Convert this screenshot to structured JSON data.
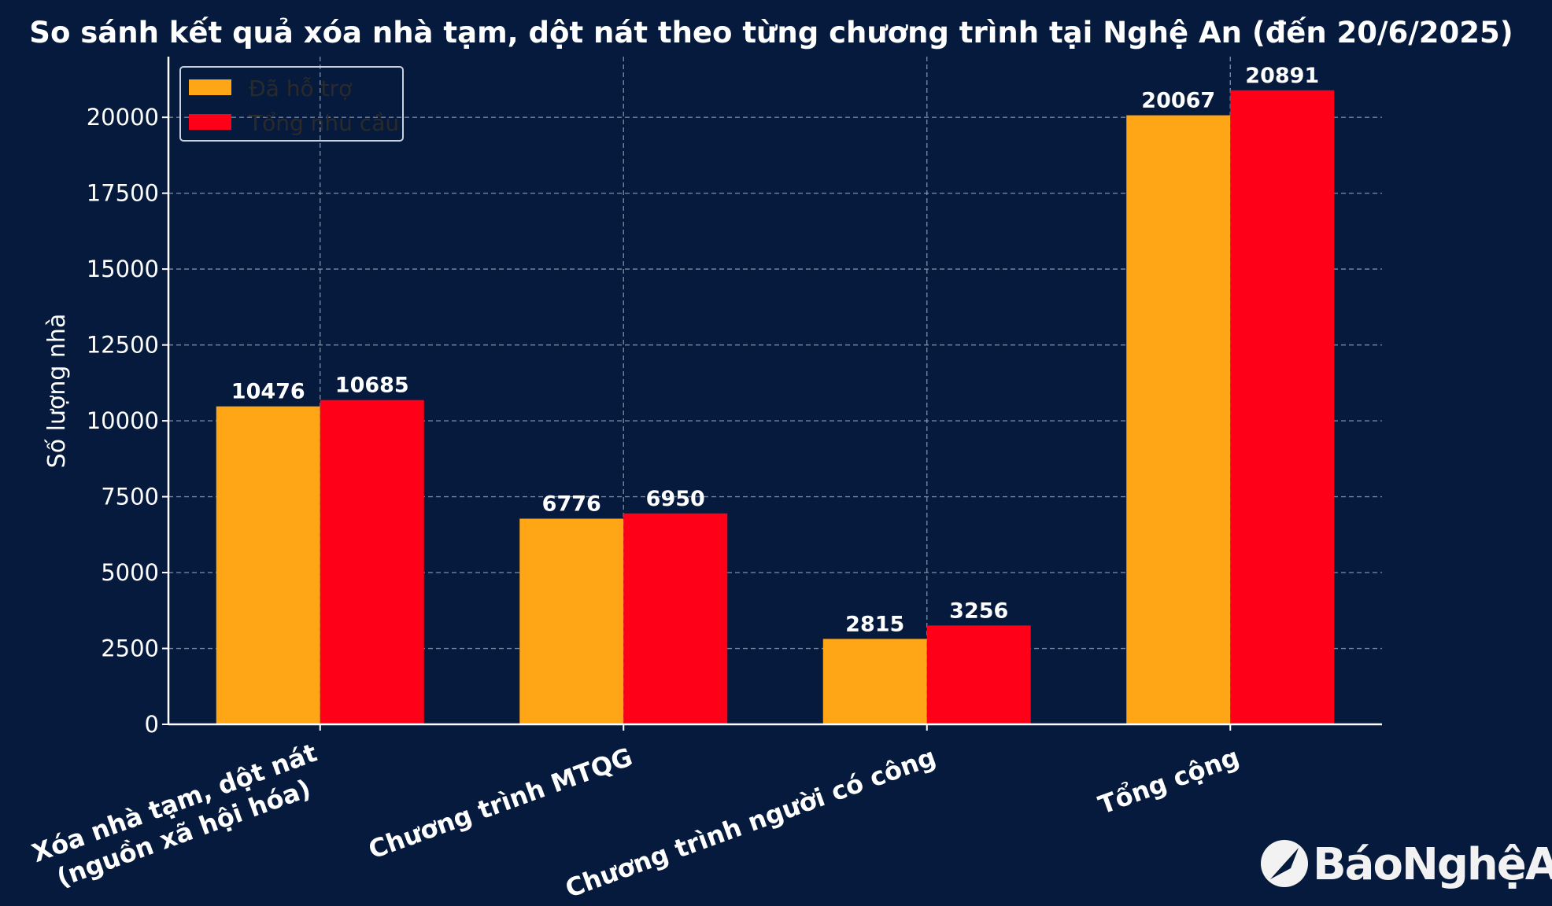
{
  "chart_data": {
    "type": "bar",
    "title": "So sánh kết quả xóa nhà tạm, dột nát theo từng chương trình tại Nghệ An (đến 20/6/2025)",
    "xlabel": "",
    "ylabel": "Số lượng nhà",
    "ylim": [
      0,
      22000
    ],
    "yticks": [
      0,
      2500,
      5000,
      7500,
      10000,
      12500,
      15000,
      17500,
      20000
    ],
    "grid": true,
    "legend_position": "top-left",
    "categories": [
      [
        "Xóa nhà tạm, dột nát",
        "(nguồn xã hội hóa)"
      ],
      [
        "Chương trình MTQG"
      ],
      [
        "Chương trình người có công"
      ],
      [
        "Tổng cộng"
      ]
    ],
    "series": [
      {
        "name": "Đã hỗ trợ",
        "color": "#ffa617",
        "values": [
          10476,
          6776,
          2815,
          20067
        ]
      },
      {
        "name": "Tổng nhu cầu",
        "color": "#ff0019",
        "values": [
          10685,
          6950,
          3256,
          20891
        ]
      }
    ]
  },
  "logo": {
    "text": "BáoNghệAn",
    "mark_text": "Báo Nghệ An"
  },
  "colors": {
    "background": "#051a3c",
    "grid": "#8fa0b8",
    "axis": "#ffffff",
    "text": "#ffffff"
  }
}
